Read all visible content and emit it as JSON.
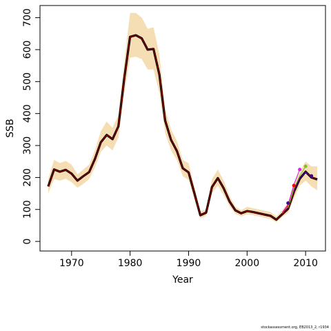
{
  "chart_data": {
    "type": "line",
    "title": "",
    "xlabel": "Year",
    "ylabel": "SSB",
    "xlim": [
      1964.6,
      2013.4
    ],
    "ylim": [
      -30,
      738
    ],
    "xticks": [
      1970,
      1980,
      1990,
      2000,
      2010
    ],
    "yticks": [
      0,
      100,
      200,
      300,
      400,
      500,
      600,
      700
    ],
    "grid": false,
    "colors": {
      "band": "#f5deb3",
      "main": "#000000",
      "retro": "#8b0000"
    },
    "series": [
      {
        "role": "estimate",
        "x": [
          1966,
          1967,
          1968,
          1969,
          1970,
          1971,
          1972,
          1973,
          1974,
          1975,
          1976,
          1977,
          1978,
          1979,
          1980,
          1981,
          1982,
          1983,
          1984,
          1985,
          1986,
          1987,
          1988,
          1989,
          1990,
          1991,
          1992,
          1993,
          1994,
          1995,
          1996,
          1997,
          1998,
          1999,
          2000,
          2001,
          2002,
          2003,
          2004,
          2005,
          2006,
          2007,
          2008,
          2009,
          2010,
          2011,
          2012
        ],
        "y": [
          172,
          225,
          218,
          224,
          212,
          190,
          204,
          217,
          258,
          310,
          333,
          320,
          360,
          510,
          640,
          645,
          635,
          600,
          602,
          522,
          378,
          318,
          283,
          229,
          216,
          150,
          82,
          90,
          170,
          198,
          166,
          125,
          97,
          88,
          95,
          92,
          88,
          84,
          80,
          68,
          85,
          102,
          155,
          196,
          218,
          200,
          194
        ]
      },
      {
        "role": "upper",
        "x": [
          1966,
          1967,
          1968,
          1969,
          1970,
          1971,
          1972,
          1973,
          1974,
          1975,
          1976,
          1977,
          1978,
          1979,
          1980,
          1981,
          1982,
          1983,
          1984,
          1985,
          1986,
          1987,
          1988,
          1989,
          1990,
          1991,
          1992,
          1993,
          1994,
          1995,
          1996,
          1997,
          1998,
          1999,
          2000,
          2001,
          2002,
          2003,
          2004,
          2005,
          2006,
          2007,
          2008,
          2009,
          2010,
          2011,
          2012
        ],
        "y": [
          195,
          255,
          245,
          252,
          240,
          210,
          225,
          240,
          285,
          345,
          375,
          355,
          395,
          560,
          715,
          715,
          700,
          665,
          670,
          585,
          415,
          350,
          315,
          255,
          245,
          170,
          95,
          100,
          195,
          225,
          190,
          142,
          108,
          98,
          108,
          104,
          100,
          96,
          92,
          78,
          98,
          120,
          180,
          218,
          250,
          235,
          235
        ]
      },
      {
        "role": "lower",
        "x": [
          1966,
          1967,
          1968,
          1969,
          1970,
          1971,
          1972,
          1973,
          1974,
          1975,
          1976,
          1977,
          1978,
          1979,
          1980,
          1981,
          1982,
          1983,
          1984,
          1985,
          1986,
          1987,
          1988,
          1989,
          1990,
          1991,
          1992,
          1993,
          1994,
          1995,
          1996,
          1997,
          1998,
          1999,
          2000,
          2001,
          2002,
          2003,
          2004,
          2005,
          2006,
          2007,
          2008,
          2009,
          2010,
          2011,
          2012
        ],
        "y": [
          150,
          195,
          190,
          196,
          185,
          168,
          180,
          195,
          232,
          280,
          300,
          285,
          325,
          460,
          575,
          578,
          570,
          538,
          538,
          465,
          340,
          285,
          255,
          205,
          192,
          130,
          72,
          80,
          150,
          175,
          145,
          110,
          86,
          78,
          85,
          82,
          78,
          74,
          70,
          60,
          76,
          90,
          135,
          175,
          190,
          172,
          160
        ]
      },
      {
        "role": "retro-2008",
        "x": [
          2006,
          2007,
          2008
        ],
        "y": [
          90,
          115,
          175
        ]
      },
      {
        "role": "retro-2009",
        "x": [
          2006,
          2007,
          2008,
          2009
        ],
        "y": [
          88,
          112,
          178,
          225
        ]
      },
      {
        "role": "retro-2010",
        "x": [
          2007,
          2008,
          2009,
          2010
        ],
        "y": [
          105,
          165,
          205,
          235
        ]
      },
      {
        "role": "retro-2011",
        "x": [
          2008,
          2009,
          2010,
          2011
        ],
        "y": [
          158,
          198,
          216,
          205
        ]
      }
    ],
    "retro_markers": [
      {
        "x": 2007,
        "y": 120,
        "color": "#4b0082"
      },
      {
        "x": 2008,
        "y": 175,
        "color": "#ff0000"
      },
      {
        "x": 2009,
        "y": 225,
        "color": "#e020e0"
      },
      {
        "x": 2010,
        "y": 235,
        "color": "#80c020"
      },
      {
        "x": 2011,
        "y": 205,
        "color": "#4000a0"
      }
    ]
  },
  "footer": "stockassessment.org, EB2013_2, r1934"
}
